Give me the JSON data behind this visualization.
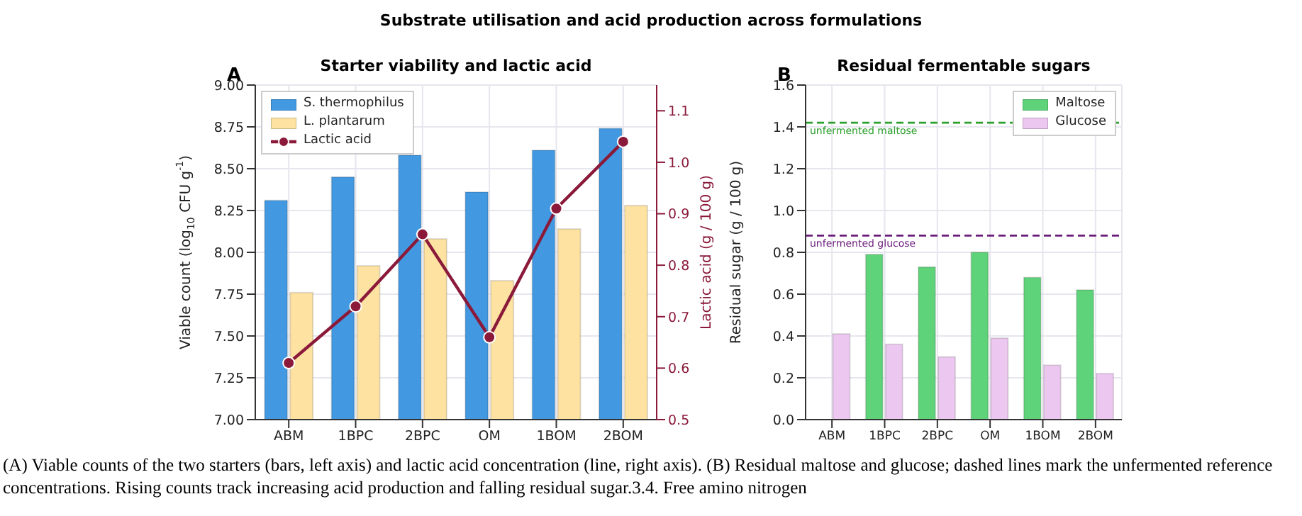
{
  "chart_data": [
    {
      "type": "bar",
      "title": "Starter viability and lactic acid",
      "ylabel": "Viable count (log$_{10}$ CFU g$^{-1}$)",
      "y2label": "Lactic acid (g / 100 g)",
      "annotations": [
        "A",
        "Substrate utilisation and acid production across formulations",
        "(A) Viable counts of the two starters (bars, left axis) and lactic acid concentration (line, right axis). (B) Residual maltose and glucose; dashed lines mark the unfermented reference concentrations. Rising counts track increasing acid production and falling residual sugar.3.4. Free amino nitrogen"
      ],
      "categories": [
        "ABM",
        "1BPC",
        "2BPC",
        "OM",
        "1BOM",
        "2BOM"
      ],
      "series": [
        {
          "name": "S. thermophilus",
          "type": "bar",
          "color": "#4299e1",
          "values": [
            8.31,
            8.45,
            8.58,
            8.36,
            8.61,
            8.74
          ]
        },
        {
          "name": "L. plantarum",
          "type": "bar",
          "color": "#fde2a2",
          "values": [
            7.76,
            7.92,
            8.08,
            7.83,
            8.14,
            8.28
          ]
        },
        {
          "name": "Lactic acid",
          "type": "line",
          "axis": "y2",
          "color": "#8b1a3a",
          "marker": "circle",
          "values": [
            0.61,
            0.72,
            0.86,
            0.66,
            0.91,
            1.04
          ]
        }
      ],
      "ylim": [
        7,
        9
      ],
      "yticks": [
        {
          "value": 7,
          "label": "7.00"
        },
        {
          "value": 7.25,
          "label": "7.25"
        },
        {
          "value": 7.5,
          "label": "7.50"
        },
        {
          "value": 7.75,
          "label": "7.75"
        },
        {
          "value": 8,
          "label": "8.00"
        },
        {
          "value": 8.25,
          "label": "8.25"
        },
        {
          "value": 8.5,
          "label": "8.50"
        },
        {
          "value": 8.75,
          "label": "8.75"
        },
        {
          "value": 9,
          "label": "9.00"
        }
      ],
      "y2lim": [
        0.5,
        1.15
      ],
      "y2ticks": [
        0.5,
        0.6,
        0.7,
        0.8,
        0.9,
        {
          "value": 1,
          "label": "1.0"
        },
        1.1
      ],
      "grid": true,
      "legend": "top left"
    },
    {
      "type": "bar",
      "title": "Residual fermentable sugars",
      "ylabel": "Residual sugar (g / 100 g)",
      "annotations": [
        "B"
      ],
      "categories": [
        "ABM",
        "1BPC",
        "2BPC",
        "OM",
        "1BOM",
        "2BOM"
      ],
      "series": [
        {
          "name": "Maltose",
          "type": "bar",
          "color": "#5fd37a",
          "values": [
            null,
            0.79,
            0.73,
            0.8,
            0.68,
            0.62
          ]
        },
        {
          "name": "Glucose",
          "type": "bar",
          "color": "#ecc8f0",
          "values": [
            0.41,
            0.36,
            0.3,
            0.39,
            0.26,
            0.22
          ]
        }
      ],
      "ylim": [
        0,
        1.6
      ],
      "yticks": [
        {
          "value": 0,
          "label": "0.0"
        },
        0.2,
        0.4,
        0.6,
        0.8,
        {
          "value": 1,
          "label": "1.0"
        },
        1.2,
        1.4,
        1.6
      ],
      "grid": true,
      "legend": "top right",
      "ref_lines": [
        {
          "axis": "y",
          "value": 1.42,
          "label": "unfermented maltose",
          "color": "#2ca02c",
          "line_style": "dashed"
        },
        {
          "axis": "y",
          "value": 0.88,
          "label": "unfermented glucose",
          "color": "#6a1b7a",
          "line_style": "dashed"
        }
      ]
    }
  ]
}
